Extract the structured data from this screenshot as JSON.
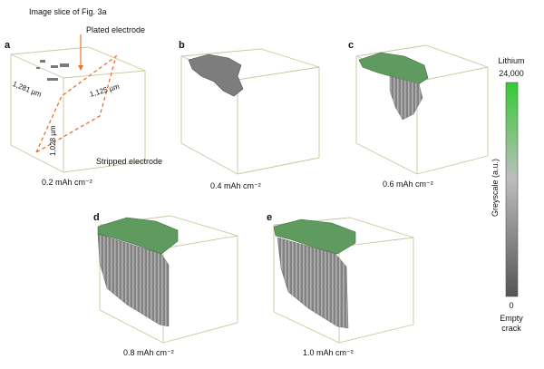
{
  "annotations": {
    "image_slice": "Image slice of Fig. 3a",
    "plated_electrode": "Plated electrode",
    "stripped_electrode": "Stripped electrode",
    "dim_x": "1,281 µm",
    "dim_y": "1,125 µm",
    "dim_z": "1,028 µm"
  },
  "panels": [
    {
      "label": "a",
      "caption": "0.2 mAh cm⁻²"
    },
    {
      "label": "b",
      "caption": "0.4 mAh cm⁻²"
    },
    {
      "label": "c",
      "caption": "0.6 mAh cm⁻²"
    },
    {
      "label": "d",
      "caption": "0.8 mAh cm⁻²"
    },
    {
      "label": "e",
      "caption": "1.0 mAh cm⁻²"
    }
  ],
  "colorbar": {
    "top_label": "Lithium",
    "max_value": "24,000",
    "axis_title": "Greyscale (a.u.)",
    "min_value": "0",
    "bottom_label_1": "Empty",
    "bottom_label_2": "crack",
    "color_top": "#33cc33",
    "color_mid": "#b8b8b8",
    "color_bottom": "#555555"
  },
  "colors": {
    "box_edge": "#c9c7a0",
    "annotation_orange": "#e8742a",
    "deposit_grey": "#8a8a8a",
    "deposit_green": "#4a9a4a"
  }
}
